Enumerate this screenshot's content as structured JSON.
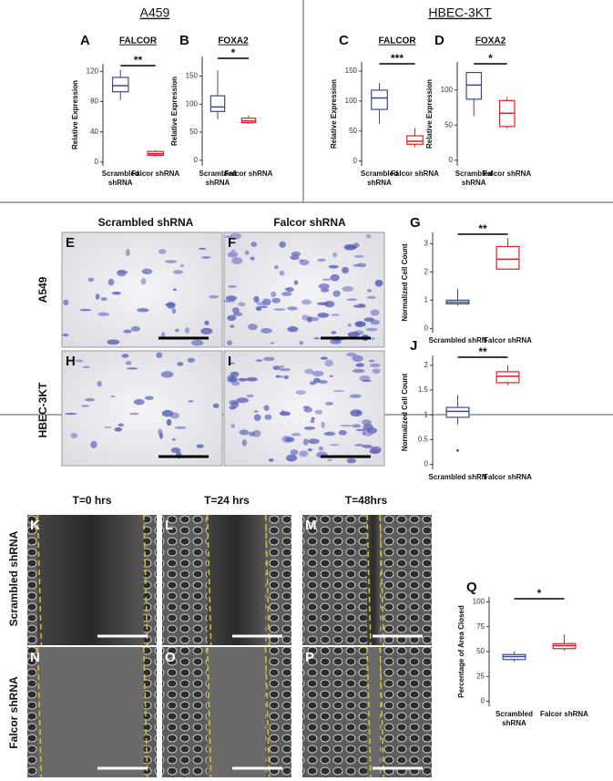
{
  "figure": {
    "group_titles": [
      "A459",
      "HBEC-3KT"
    ],
    "invasion_column_headers": [
      "Scrambled shRNA",
      "Falcor shRNA"
    ],
    "invasion_row_labels": [
      "A549",
      "HBEC-3KT"
    ],
    "invasion_panels": [
      "E",
      "F",
      "H",
      "I"
    ],
    "wound_column_headers": [
      "T=0 hrs",
      "T=24 hrs",
      "T=48hrs"
    ],
    "wound_row_labels": [
      "Scrambled shRNA",
      "Falcor shRNA"
    ],
    "wound_panels": [
      "K",
      "L",
      "M",
      "N",
      "O",
      "P"
    ]
  },
  "chart_data": [
    {
      "type": "box",
      "panel": "A",
      "title": "FALCOR",
      "ylabel": "Relative Expression",
      "categories": [
        "Scrambled shRNA",
        "Falcor shRNA"
      ],
      "colors": [
        "#3b4a8c",
        "#e02020"
      ],
      "boxes": [
        {
          "whislo": 82,
          "q1": 93,
          "med": 101,
          "q3": 112,
          "whishi": 122
        },
        {
          "whislo": 7,
          "q1": 9,
          "med": 11,
          "q3": 14,
          "whishi": 16
        }
      ],
      "ylim": [
        -5,
        130
      ],
      "yticks": [
        0,
        40,
        80,
        120
      ],
      "significance": "**"
    },
    {
      "type": "box",
      "panel": "B",
      "title": "FOXA2",
      "ylabel": "Relative Expression",
      "categories": [
        "Scrambled shRNA",
        "Falcor shRNA"
      ],
      "colors": [
        "#3b4a8c",
        "#e02020"
      ],
      "boxes": [
        {
          "whislo": 73,
          "q1": 87,
          "med": 95,
          "q3": 115,
          "whishi": 160
        },
        {
          "whislo": 65,
          "q1": 67,
          "med": 70,
          "q3": 75,
          "whishi": 80
        }
      ],
      "ylim": [
        -10,
        185
      ],
      "yticks": [
        0,
        50,
        100,
        150
      ],
      "significance": "*"
    },
    {
      "type": "box",
      "panel": "C",
      "title": "FALCOR",
      "ylabel": "Relative Expression",
      "categories": [
        "Scrambled shRNA",
        "Falcor shRNA"
      ],
      "colors": [
        "#3b4a8c",
        "#e02020"
      ],
      "boxes": [
        {
          "whislo": 62,
          "q1": 86,
          "med": 105,
          "q3": 118,
          "whishi": 130
        },
        {
          "whislo": 23,
          "q1": 28,
          "med": 33,
          "q3": 42,
          "whishi": 55
        }
      ],
      "ylim": [
        -8,
        165
      ],
      "yticks": [
        0,
        50,
        100,
        150
      ],
      "significance": "***"
    },
    {
      "type": "box",
      "panel": "D",
      "title": "FOXA2",
      "ylabel": "Relative Expression",
      "categories": [
        "Scrambled shRNA",
        "Falcor shRNA"
      ],
      "colors": [
        "#3b4a8c",
        "#e02020"
      ],
      "boxes": [
        {
          "whislo": 63,
          "q1": 87,
          "med": 107,
          "q3": 125,
          "whishi": 125
        },
        {
          "whislo": 45,
          "q1": 48,
          "med": 67,
          "q3": 85,
          "whishi": 90
        }
      ],
      "ylim": [
        -8,
        140
      ],
      "yticks": [
        0,
        50,
        100
      ],
      "significance": "*"
    },
    {
      "type": "box",
      "panel": "G",
      "ylabel": "Normalized Cell Count",
      "categories": [
        "Scrambled shRNA",
        "Falcor shRNA"
      ],
      "colors": [
        "#3b4a8c",
        "#e02020"
      ],
      "boxes": [
        {
          "whislo": 0.8,
          "q1": 0.87,
          "med": 0.93,
          "q3": 1.0,
          "whishi": 1.4
        },
        {
          "whislo": 2.1,
          "q1": 2.1,
          "med": 2.45,
          "q3": 2.9,
          "whishi": 3.2
        }
      ],
      "ylim": [
        -0.15,
        3.4
      ],
      "yticks": [
        0,
        1,
        2,
        3
      ],
      "significance": "**"
    },
    {
      "type": "box",
      "panel": "J",
      "ylabel": "Normalized Cell Count",
      "categories": [
        "Scrambled shRNA",
        "Falcor shRNA"
      ],
      "colors": [
        "#3b4a8c",
        "#e02020"
      ],
      "boxes": [
        {
          "whislo": 0.8,
          "q1": 0.95,
          "med": 1.07,
          "q3": 1.15,
          "whishi": 1.4,
          "outliers": [
            0.28
          ]
        },
        {
          "whislo": 1.6,
          "q1": 1.65,
          "med": 1.78,
          "q3": 1.87,
          "whishi": 2.0
        }
      ],
      "ylim": [
        -0.1,
        2.2
      ],
      "yticks": [
        0,
        0.5,
        1,
        1.5,
        2
      ],
      "significance": "**"
    },
    {
      "type": "box",
      "panel": "Q",
      "ylabel": "Percentage of Area Closed",
      "categories": [
        "Scrambled shRNA",
        "Falcor shRNA"
      ],
      "colors": [
        "#3b4a8c",
        "#e02020"
      ],
      "boxes": [
        {
          "whislo": 40,
          "q1": 42,
          "med": 45,
          "q3": 47,
          "whishi": 50
        },
        {
          "whislo": 51,
          "q1": 53,
          "med": 56,
          "q3": 58,
          "whishi": 67
        }
      ],
      "ylim": [
        -5,
        105
      ],
      "yticks": [
        0,
        25,
        50,
        75,
        100
      ],
      "significance": "*"
    }
  ]
}
